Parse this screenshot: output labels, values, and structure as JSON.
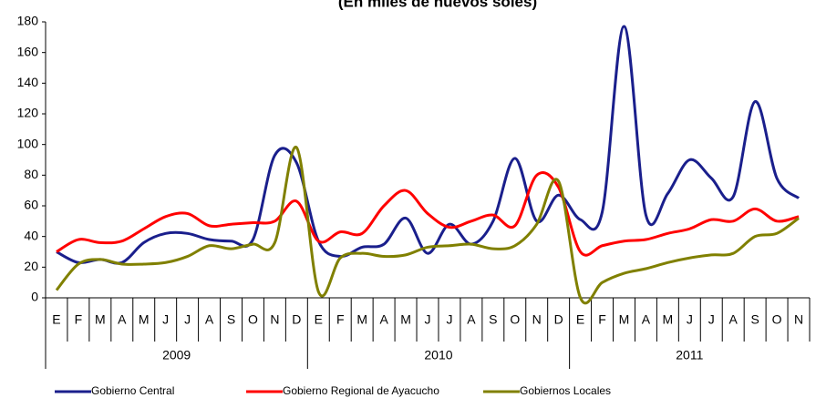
{
  "chart_data": {
    "type": "line",
    "title": "(En miles de nuevos soles)",
    "years": [
      {
        "label": "2009",
        "months": [
          "E",
          "F",
          "M",
          "A",
          "M",
          "J",
          "J",
          "A",
          "S",
          "O",
          "N",
          "D"
        ]
      },
      {
        "label": "2010",
        "months": [
          "E",
          "F",
          "M",
          "A",
          "M",
          "J",
          "J",
          "A",
          "S",
          "O",
          "N",
          "D"
        ]
      },
      {
        "label": "2011",
        "months": [
          "E",
          "F",
          "M",
          "A",
          "M",
          "J",
          "J",
          "A",
          "S",
          "O",
          "N"
        ]
      }
    ],
    "series": [
      {
        "name": "Gobierno Central",
        "color": "#1a1f8c",
        "values": [
          30,
          23,
          25,
          23,
          36,
          42,
          42,
          38,
          37,
          38,
          93,
          88,
          37,
          27,
          33,
          35,
          52,
          29,
          48,
          35,
          50,
          91,
          50,
          67,
          51,
          56,
          177,
          54,
          68,
          90,
          78,
          66,
          128,
          78,
          65
        ]
      },
      {
        "name": "Gobierno Regional de Ayacucho",
        "color": "#ff0000",
        "values": [
          30,
          38,
          36,
          37,
          45,
          53,
          55,
          47,
          48,
          49,
          50,
          63,
          37,
          43,
          42,
          60,
          70,
          55,
          46,
          50,
          54,
          47,
          80,
          72,
          30,
          34,
          37,
          38,
          42,
          45,
          51,
          50,
          58,
          50,
          53
        ]
      },
      {
        "name": "Gobiernos Locales",
        "color": "#808000",
        "values": [
          5,
          22,
          25,
          22,
          22,
          23,
          27,
          34,
          32,
          35,
          36,
          98,
          4,
          26,
          29,
          27,
          28,
          33,
          34,
          35,
          32,
          34,
          48,
          76,
          0,
          10,
          16,
          19,
          23,
          26,
          28,
          29,
          40,
          42,
          52
        ]
      }
    ],
    "ylim": [
      0,
      180
    ],
    "yticks": [
      0,
      20,
      40,
      60,
      80,
      100,
      120,
      140,
      160,
      180
    ],
    "grid": false
  }
}
